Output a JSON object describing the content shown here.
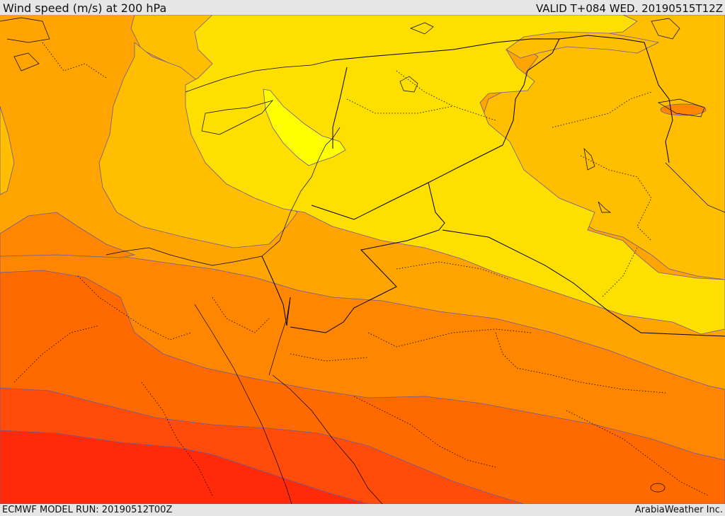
{
  "header": {
    "title": "Wind speed (m/s) at 200 hPa",
    "valid": "VALID T+084 WED. 20190515T12Z"
  },
  "footer": {
    "model_run": "ECMWF MODEL RUN: 20190512T00Z",
    "brand": "ArabiaWeather Inc."
  },
  "map": {
    "field": "wind speed at 200 hPa",
    "colors": {
      "bright_yellow": "#ffff00",
      "yellow": "#ffdf00",
      "orange_yellow": "#ffbe00",
      "light_orange": "#ffa400",
      "orange": "#ff8600",
      "dark_orange": "#ff6a00",
      "red_orange": "#ff4c0a",
      "red": "#ff2a0a",
      "contour_line": "#6a5a9a",
      "border_line": "#000000"
    }
  }
}
